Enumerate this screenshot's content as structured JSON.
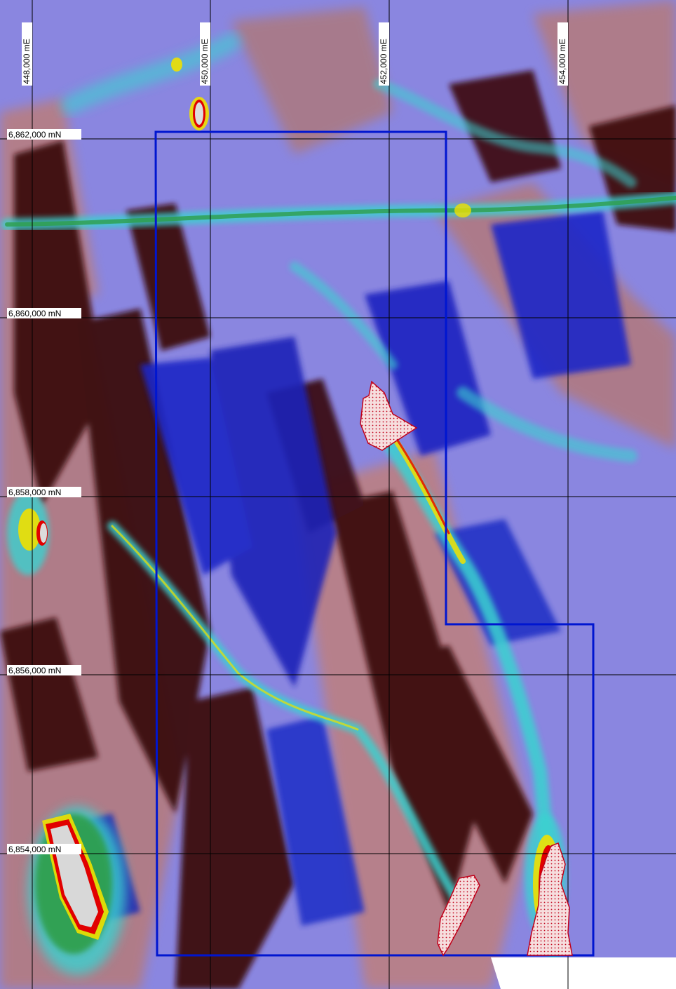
{
  "map": {
    "easting_labels": [
      "448,000 mE",
      "450,000 mE",
      "452,000 mE",
      "454,000 mE"
    ],
    "northing_labels": [
      "6,862,000 mN",
      "6,860,000 mN",
      "6,858,000 mN",
      "6,856,000 mN",
      "6,854,000 mN"
    ],
    "colors": {
      "dark_low": "#3d0a0d",
      "low": "#b87e82",
      "mid_low": "#7e80f5",
      "mid": "#1a24c8",
      "mid_high": "#3ad2d0",
      "high": "#2e9e4a",
      "very_high": "#f0e000",
      "peak": "#e10000",
      "boundary": "#0016d0",
      "target_fill": "#f4d8d8",
      "target_outline": "#c0001a"
    }
  }
}
